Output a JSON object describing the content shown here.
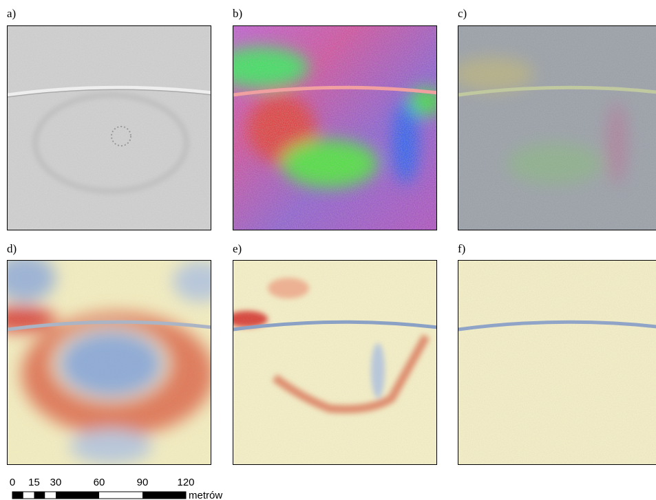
{
  "panels": [
    {
      "label": "a)"
    },
    {
      "label": "b)"
    },
    {
      "label": "c)"
    },
    {
      "label": "d)"
    },
    {
      "label": "e)"
    },
    {
      "label": "f)"
    }
  ],
  "scale_bar": {
    "ticks": [
      0,
      15,
      30,
      60,
      90,
      120
    ],
    "unit": "metrów"
  }
}
